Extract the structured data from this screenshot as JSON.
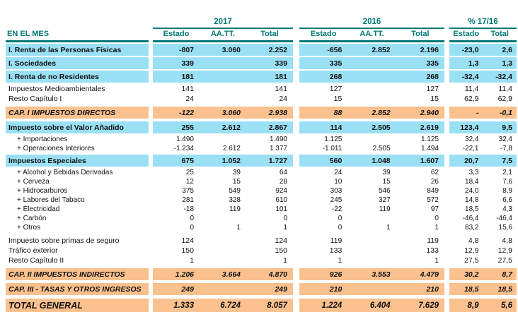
{
  "colors": {
    "header_teal": "#007876",
    "row_highlight_blue": "#9ae0f5",
    "row_section_orange": "#fac08d"
  },
  "header": {
    "row_label": "EN EL MES",
    "groups": [
      {
        "label": "2017",
        "cols": [
          "Estado",
          "AA.TT.",
          "Total"
        ]
      },
      {
        "label": "2016",
        "cols": [
          "Estado",
          "AA.TT.",
          "Total"
        ]
      },
      {
        "label": "% 17/16",
        "cols": [
          "Estado",
          "Total"
        ]
      }
    ]
  },
  "sections": [
    {
      "rows": [
        {
          "label": "I. Renta de las Personas Físicas",
          "style": "blue",
          "y2017": [
            "-807",
            "3.060",
            "2.252"
          ],
          "y2016": [
            "-656",
            "2.852",
            "2.196"
          ],
          "pct": [
            "-23,0",
            "2,6"
          ]
        },
        {
          "label": "I. Sociedades",
          "style": "blue",
          "y2017": [
            "339",
            "",
            "339"
          ],
          "y2016": [
            "335",
            "",
            "335"
          ],
          "pct": [
            "1,3",
            "1,3"
          ]
        },
        {
          "label": "I. Renta de no Residentes",
          "style": "blue",
          "y2017": [
            "181",
            "",
            "181"
          ],
          "y2016": [
            "268",
            "",
            "268"
          ],
          "pct": [
            "-32,4",
            "-32,4"
          ]
        },
        {
          "label": "Impuestos Medioambientales",
          "style": "plain",
          "y2017": [
            "141",
            "",
            "141"
          ],
          "y2016": [
            "127",
            "",
            "127"
          ],
          "pct": [
            "11,4",
            "11,4"
          ]
        },
        {
          "label": "Resto Capítulo I",
          "style": "plain",
          "y2017": [
            "24",
            "",
            "24"
          ],
          "y2016": [
            "15",
            "",
            "15"
          ],
          "pct": [
            "62,9",
            "62,9"
          ]
        }
      ]
    },
    {
      "rows": [
        {
          "label": "CAP. I IMPUESTOS DIRECTOS",
          "style": "orange",
          "y2017": [
            "-122",
            "3.060",
            "2.938"
          ],
          "y2016": [
            "88",
            "2.852",
            "2.940"
          ],
          "pct": [
            "-",
            "-0,1"
          ]
        }
      ]
    },
    {
      "rows": [
        {
          "label": "Impuesto sobre el Valor Añadido",
          "style": "blue",
          "y2017": [
            "255",
            "2.612",
            "2.867"
          ],
          "y2016": [
            "114",
            "2.505",
            "2.619"
          ],
          "pct": [
            "123,4",
            "9,5"
          ]
        },
        {
          "label": "+ Importaciones",
          "style": "subitem",
          "y2017": [
            "1.490",
            "",
            "1.490"
          ],
          "y2016": [
            "1.125",
            "",
            "1.125"
          ],
          "pct": [
            "32,4",
            "32,4"
          ]
        },
        {
          "label": "+ Operaciones Interiores",
          "style": "subitem",
          "y2017": [
            "-1.234",
            "2.612",
            "1.377"
          ],
          "y2016": [
            "-1.011",
            "2.505",
            "1.494"
          ],
          "pct": [
            "-22,1",
            "-7,8"
          ]
        }
      ]
    },
    {
      "rows": [
        {
          "label": "Impuestos Especiales",
          "style": "blue",
          "y2017": [
            "675",
            "1.052",
            "1.727"
          ],
          "y2016": [
            "560",
            "1.048",
            "1.607"
          ],
          "pct": [
            "20,7",
            "7,5"
          ]
        },
        {
          "label": "+ Alcohol y Bebidas Derivadas",
          "style": "subitem",
          "y2017": [
            "25",
            "39",
            "64"
          ],
          "y2016": [
            "24",
            "39",
            "62"
          ],
          "pct": [
            "3,3",
            "2,1"
          ]
        },
        {
          "label": "+ Cerveza",
          "style": "subitem",
          "y2017": [
            "12",
            "15",
            "28"
          ],
          "y2016": [
            "10",
            "15",
            "26"
          ],
          "pct": [
            "18,4",
            "7,6"
          ]
        },
        {
          "label": "+ Hidrocarburos",
          "style": "subitem",
          "y2017": [
            "375",
            "549",
            "924"
          ],
          "y2016": [
            "303",
            "546",
            "849"
          ],
          "pct": [
            "24,0",
            "8,9"
          ]
        },
        {
          "label": "+ Labores del Tabaco",
          "style": "subitem",
          "y2017": [
            "281",
            "328",
            "610"
          ],
          "y2016": [
            "245",
            "327",
            "572"
          ],
          "pct": [
            "14,8",
            "6,6"
          ]
        },
        {
          "label": "+ Electricidad",
          "style": "subitem",
          "y2017": [
            "-18",
            "119",
            "101"
          ],
          "y2016": [
            "-22",
            "119",
            "97"
          ],
          "pct": [
            "18,5",
            "4,3"
          ]
        },
        {
          "label": "+ Carbón",
          "style": "subitem",
          "y2017": [
            "0",
            "",
            "0"
          ],
          "y2016": [
            "0",
            "",
            "0"
          ],
          "pct": [
            "-46,4",
            "-46,4"
          ]
        },
        {
          "label": "+ Otros",
          "style": "subitem",
          "y2017": [
            "0",
            "1",
            "1"
          ],
          "y2016": [
            "0",
            "1",
            "1"
          ],
          "pct": [
            "83,2",
            "15,6"
          ]
        }
      ]
    },
    {
      "rows": [
        {
          "label": "Impuesto sobre primas de seguro",
          "style": "plain",
          "y2017": [
            "124",
            "",
            "124"
          ],
          "y2016": [
            "119",
            "",
            "119"
          ],
          "pct": [
            "4,8",
            "4,8"
          ]
        },
        {
          "label": "Tráfico exterior",
          "style": "plain",
          "y2017": [
            "150",
            "",
            "150"
          ],
          "y2016": [
            "133",
            "",
            "133"
          ],
          "pct": [
            "12,9",
            "12,9"
          ]
        },
        {
          "label": "Resto Capítulo II",
          "style": "plain",
          "y2017": [
            "1",
            "",
            "1"
          ],
          "y2016": [
            "1",
            "",
            "1"
          ],
          "pct": [
            "27,5",
            "27,5"
          ]
        }
      ]
    },
    {
      "rows": [
        {
          "label": "CAP. II IMPUESTOS INDIRECTOS",
          "style": "orange",
          "y2017": [
            "1.206",
            "3.664",
            "4.870"
          ],
          "y2016": [
            "926",
            "3.553",
            "4.479"
          ],
          "pct": [
            "30,2",
            "8,7"
          ]
        }
      ]
    },
    {
      "rows": [
        {
          "label": "CAP. III - TASAS Y OTROS INGRESOS",
          "style": "orange",
          "y2017": [
            "249",
            "",
            "249"
          ],
          "y2016": [
            "210",
            "",
            "210"
          ],
          "pct": [
            "18,5",
            "18,5"
          ]
        }
      ]
    },
    {
      "rows": [
        {
          "label": "TOTAL GENERAL",
          "style": "total",
          "y2017": [
            "1.333",
            "6.724",
            "8.057"
          ],
          "y2016": [
            "1.224",
            "6.404",
            "7.629"
          ],
          "pct": [
            "8,9",
            "5,6"
          ]
        }
      ]
    }
  ]
}
